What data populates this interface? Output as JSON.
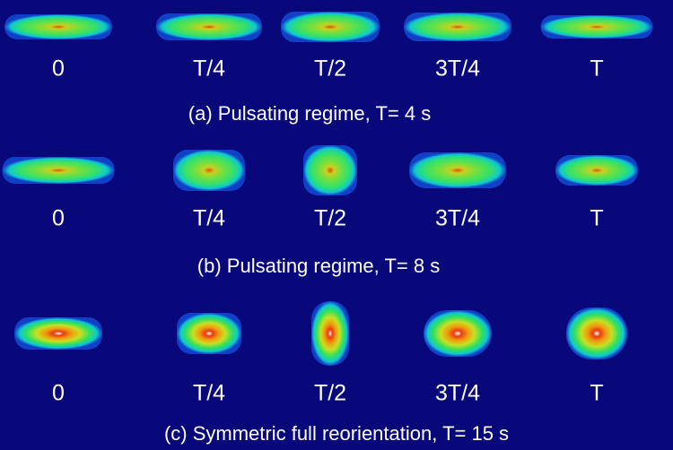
{
  "rows": [
    {
      "frames": [
        "0",
        "T/4",
        "T/2",
        "3T/4",
        "T"
      ],
      "caption": "(a) Pulsating regime, T= 4 s"
    },
    {
      "frames": [
        "0",
        "T/4",
        "T/2",
        "3T/4",
        "T"
      ],
      "caption": "(b) Pulsating regime, T= 8 s"
    },
    {
      "frames": [
        "0",
        "T/4",
        "T/2",
        "3T/4",
        "T"
      ],
      "caption": "(c) Symmetric full reorientation, T= 15 s"
    }
  ]
}
